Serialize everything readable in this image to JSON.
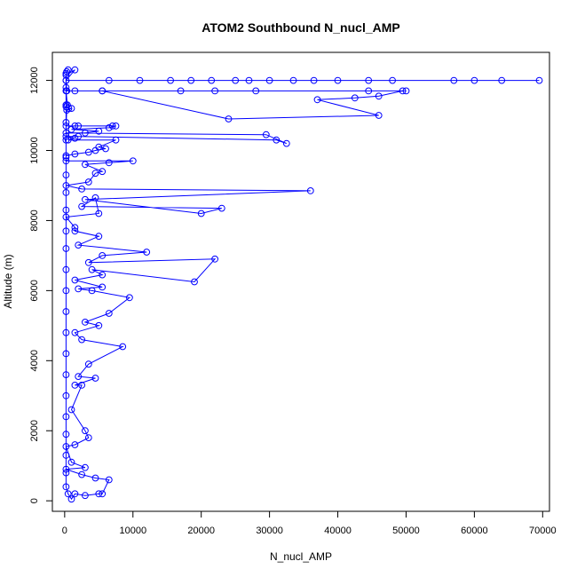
{
  "chart_data": {
    "type": "line",
    "title": "ATOM2 Southbound N_nucl_AMP",
    "xlabel": "N_nucl_AMP",
    "ylabel": "Altitude (m)",
    "xlim": [
      -1800,
      71000
    ],
    "ylim": [
      -300,
      12800
    ],
    "x_ticks": [
      0,
      10000,
      20000,
      30000,
      40000,
      50000,
      60000,
      70000
    ],
    "y_ticks": [
      0,
      2000,
      4000,
      6000,
      8000,
      10000,
      12000
    ],
    "grid": false,
    "legend": "none",
    "line_style": "lines+points",
    "marker": "open-circle",
    "color": "#0000ff",
    "series": [
      {
        "points": [
          [
            500,
            12300
          ],
          [
            300,
            12250
          ],
          [
            200,
            12150
          ],
          [
            1500,
            12300
          ],
          [
            200,
            12000
          ],
          [
            69500,
            12000
          ],
          [
            64000,
            12000
          ],
          [
            57000,
            12000
          ],
          [
            60000,
            12000
          ],
          [
            48000,
            12000
          ],
          [
            44500,
            12000
          ],
          [
            40000,
            12000
          ],
          [
            36500,
            12000
          ],
          [
            33500,
            12000
          ],
          [
            30000,
            12000
          ],
          [
            27000,
            12000
          ],
          [
            25000,
            12000
          ],
          [
            21500,
            12000
          ],
          [
            18500,
            12000
          ],
          [
            15500,
            12000
          ],
          [
            11000,
            12000
          ],
          [
            6500,
            12000
          ],
          [
            200,
            12000
          ],
          [
            300,
            11700
          ],
          [
            1500,
            11700
          ],
          [
            5500,
            11700
          ],
          [
            17000,
            11700
          ],
          [
            22000,
            11700
          ],
          [
            28000,
            11700
          ],
          [
            44500,
            11700
          ],
          [
            50000,
            11700
          ],
          [
            49500,
            11700
          ],
          [
            46000,
            11550
          ],
          [
            42500,
            11500
          ],
          [
            37000,
            11450
          ],
          [
            46000,
            11000
          ],
          [
            24000,
            10900
          ],
          [
            5500,
            11700
          ],
          [
            200,
            11700
          ],
          [
            400,
            11300
          ],
          [
            200,
            11250
          ],
          [
            600,
            11200
          ],
          [
            1000,
            11200
          ],
          [
            300,
            11150
          ],
          [
            200,
            10700
          ],
          [
            1500,
            10700
          ],
          [
            2000,
            10700
          ],
          [
            7000,
            10700
          ],
          [
            7500,
            10700
          ],
          [
            6500,
            10650
          ],
          [
            1000,
            10600
          ],
          [
            5000,
            10550
          ],
          [
            3000,
            10500
          ],
          [
            200,
            10500
          ],
          [
            29500,
            10450
          ],
          [
            32500,
            10200
          ],
          [
            31000,
            10300
          ],
          [
            2000,
            10400
          ],
          [
            200,
            10400
          ],
          [
            1500,
            10350
          ],
          [
            500,
            10300
          ],
          [
            7500,
            10300
          ],
          [
            5000,
            10100
          ],
          [
            6000,
            10050
          ],
          [
            4500,
            10000
          ],
          [
            3500,
            9950
          ],
          [
            1500,
            9900
          ],
          [
            200,
            9850
          ],
          [
            200,
            9700
          ],
          [
            10000,
            9700
          ],
          [
            6500,
            9650
          ],
          [
            3000,
            9600
          ],
          [
            5500,
            9400
          ],
          [
            4500,
            9350
          ],
          [
            3500,
            9100
          ],
          [
            200,
            9000
          ],
          [
            2500,
            8900
          ],
          [
            36000,
            8850
          ],
          [
            3000,
            8600
          ],
          [
            20000,
            8200
          ],
          [
            23000,
            8350
          ],
          [
            2500,
            8400
          ],
          [
            4500,
            8650
          ],
          [
            5000,
            8200
          ],
          [
            200,
            8100
          ],
          [
            1500,
            7800
          ],
          [
            1500,
            7700
          ],
          [
            5000,
            7550
          ],
          [
            2000,
            7300
          ],
          [
            12000,
            7100
          ],
          [
            5500,
            7000
          ],
          [
            3500,
            6800
          ],
          [
            22000,
            6900
          ],
          [
            19000,
            6250
          ],
          [
            4000,
            6600
          ],
          [
            5500,
            6450
          ],
          [
            1500,
            6300
          ],
          [
            5500,
            6100
          ],
          [
            2000,
            6050
          ],
          [
            4000,
            6000
          ],
          [
            9500,
            5800
          ],
          [
            6500,
            5350
          ],
          [
            3000,
            5100
          ],
          [
            5000,
            5000
          ],
          [
            1500,
            4800
          ],
          [
            2500,
            4600
          ],
          [
            8500,
            4400
          ],
          [
            3500,
            3900
          ],
          [
            2000,
            3550
          ],
          [
            4500,
            3500
          ],
          [
            1500,
            3300
          ],
          [
            2500,
            3300
          ],
          [
            1000,
            2600
          ],
          [
            3000,
            2000
          ],
          [
            3500,
            1800
          ],
          [
            1500,
            1600
          ],
          [
            200,
            1550
          ],
          [
            1000,
            1100
          ],
          [
            3000,
            950
          ],
          [
            200,
            900
          ],
          [
            2500,
            750
          ],
          [
            4500,
            650
          ],
          [
            6500,
            600
          ],
          [
            5500,
            200
          ],
          [
            5000,
            200
          ],
          [
            3000,
            150
          ],
          [
            1500,
            200
          ],
          [
            1000,
            50
          ],
          [
            500,
            200
          ],
          [
            200,
            400
          ],
          [
            200,
            800
          ],
          [
            200,
            1300
          ],
          [
            200,
            1900
          ],
          [
            200,
            2400
          ],
          [
            200,
            3000
          ],
          [
            200,
            3600
          ],
          [
            200,
            4200
          ],
          [
            200,
            4800
          ],
          [
            200,
            5400
          ],
          [
            200,
            6000
          ],
          [
            200,
            6600
          ],
          [
            200,
            7200
          ],
          [
            200,
            7700
          ],
          [
            200,
            8300
          ],
          [
            200,
            8800
          ],
          [
            200,
            9300
          ],
          [
            200,
            9800
          ],
          [
            200,
            10300
          ],
          [
            200,
            10800
          ],
          [
            200,
            11300
          ],
          [
            200,
            11800
          ],
          [
            200,
            12200
          ]
        ]
      }
    ]
  }
}
